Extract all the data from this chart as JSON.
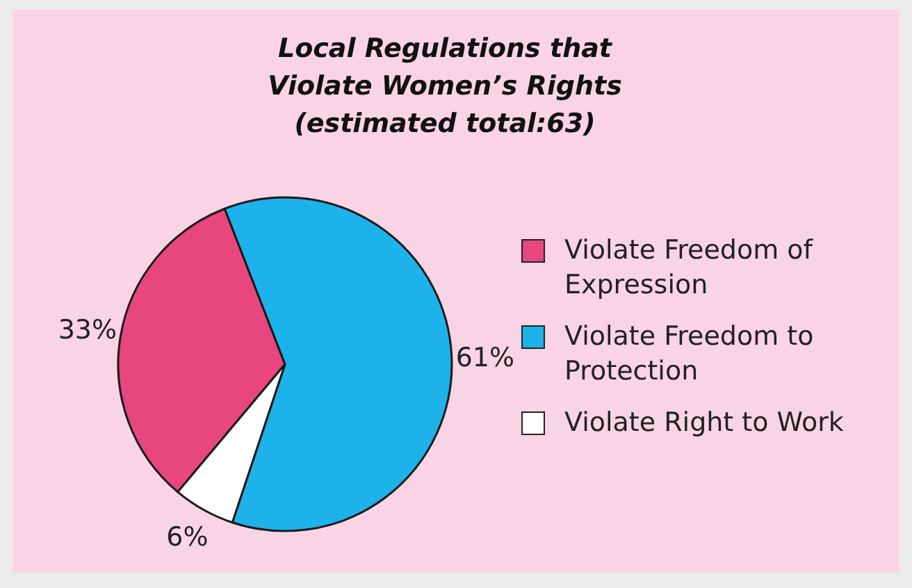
{
  "chart_data": {
    "type": "pie",
    "title": "Local Regulations that Violate Women’s Rights (estimated total:63)",
    "categories": [
      "Violate Freedom of Expression",
      "Violate Freedom to Protection",
      "Violate Right to Work"
    ],
    "values": [
      33,
      61,
      6
    ],
    "colors": [
      "#e8467f",
      "#1db3ea",
      "#ffffff"
    ],
    "value_labels": [
      "33%",
      "61%",
      "6%"
    ],
    "legend": "right"
  }
}
